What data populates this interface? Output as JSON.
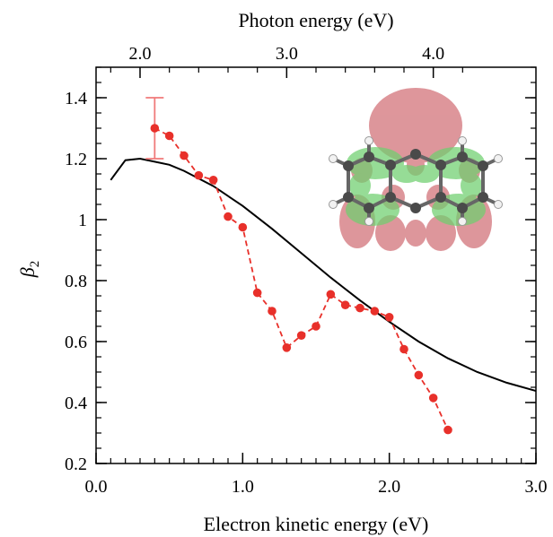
{
  "chart_data": {
    "type": "line",
    "xlabel": "Electron kinetic energy (eV)",
    "x2label": "Photon energy (eV)",
    "ylabel_symbol": "β",
    "ylabel_subscript": "2",
    "xlim": [
      0.0,
      3.0
    ],
    "ylim": [
      0.2,
      1.5
    ],
    "x_ticks": [
      {
        "value": 0.0,
        "label": "0.0"
      },
      {
        "value": 1.0,
        "label": "1.0"
      },
      {
        "value": 2.0,
        "label": "2.0"
      },
      {
        "value": 3.0,
        "label": "3.0"
      }
    ],
    "x_minor_step": 0.1,
    "y_ticks": [
      {
        "value": 0.2,
        "label": "0.2"
      },
      {
        "value": 0.4,
        "label": "0.4"
      },
      {
        "value": 0.6,
        "label": "0.6"
      },
      {
        "value": 0.8,
        "label": "0.8"
      },
      {
        "value": 1.0,
        "label": "1"
      },
      {
        "value": 1.2,
        "label": "1.2"
      },
      {
        "value": 1.4,
        "label": "1.4"
      }
    ],
    "y_minor_step": 0.05,
    "x2_ticks": [
      {
        "value": 2.0,
        "label": "2.0"
      },
      {
        "value": 3.0,
        "label": "3.0"
      },
      {
        "value": 4.0,
        "label": "4.0"
      }
    ],
    "x2_minor_ticks": [
      1.8,
      2.2,
      2.4,
      2.6,
      2.8,
      3.2,
      3.4,
      3.6,
      3.8,
      4.2
    ],
    "x2_offset": 1.7,
    "grid": false,
    "series": [
      {
        "kind": "experiment",
        "color": "#e8302a",
        "x": [
          0.4,
          0.5,
          0.6,
          0.7,
          0.8,
          0.9,
          1.0,
          1.1,
          1.2,
          1.3,
          1.4,
          1.5,
          1.6,
          1.7,
          1.8,
          1.9,
          2.0,
          2.1,
          2.2,
          2.3,
          2.4
        ],
        "y": [
          1.3,
          1.275,
          1.21,
          1.145,
          1.13,
          1.01,
          0.975,
          0.76,
          0.7,
          0.58,
          0.62,
          0.65,
          0.755,
          0.72,
          0.71,
          0.7,
          0.68,
          0.575,
          0.49,
          0.415,
          0.31
        ],
        "error_bar": {
          "x": 0.4,
          "low": 1.2,
          "high": 1.4,
          "color": "#f07a7a"
        }
      },
      {
        "kind": "theory",
        "color": "#000000",
        "x": [
          0.1,
          0.2,
          0.3,
          0.4,
          0.5,
          0.6,
          0.8,
          1.0,
          1.2,
          1.4,
          1.6,
          1.8,
          2.0,
          2.2,
          2.4,
          2.6,
          2.8,
          3.0
        ],
        "y": [
          1.13,
          1.195,
          1.2,
          1.19,
          1.18,
          1.16,
          1.11,
          1.045,
          0.97,
          0.89,
          0.81,
          0.735,
          0.665,
          0.6,
          0.545,
          0.5,
          0.465,
          0.438
        ]
      }
    ]
  },
  "inset": {
    "description_icon": "molecular-orbital-icon",
    "lobe_red": "#c9565e",
    "lobe_green": "#6fcf6f",
    "carbon": "#505050",
    "hydrogen": "#e8e8e8"
  }
}
